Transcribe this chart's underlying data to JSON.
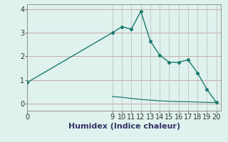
{
  "line1_x": [
    0,
    9,
    10,
    11,
    12,
    13,
    14,
    15,
    16,
    17,
    18,
    19,
    20
  ],
  "line1_y": [
    0.9,
    3.0,
    3.25,
    3.15,
    3.9,
    2.65,
    2.05,
    1.75,
    1.75,
    1.85,
    1.3,
    0.6,
    0.05
  ],
  "line2_x": [
    9,
    10,
    11,
    12,
    13,
    14,
    15,
    16,
    17,
    18,
    19,
    20
  ],
  "line2_y": [
    0.3,
    0.27,
    0.22,
    0.18,
    0.15,
    0.12,
    0.1,
    0.09,
    0.08,
    0.07,
    0.05,
    0.05
  ],
  "line_color": "#1a7a6e",
  "bg_color": "#dff2ee",
  "hgrid_color": "#c8aaa8",
  "vgrid_color": "#c8c8c8",
  "xlabel": "Humidex (Indice chaleur)",
  "xticks": [
    0,
    9,
    10,
    11,
    12,
    13,
    14,
    15,
    16,
    17,
    18,
    19,
    20
  ],
  "yticks": [
    0,
    1,
    2,
    3,
    4
  ],
  "xlim": [
    0,
    20.5
  ],
  "ylim": [
    -0.3,
    4.2
  ],
  "xlabel_fontsize": 8,
  "tick_fontsize": 7,
  "label_color": "#333366"
}
